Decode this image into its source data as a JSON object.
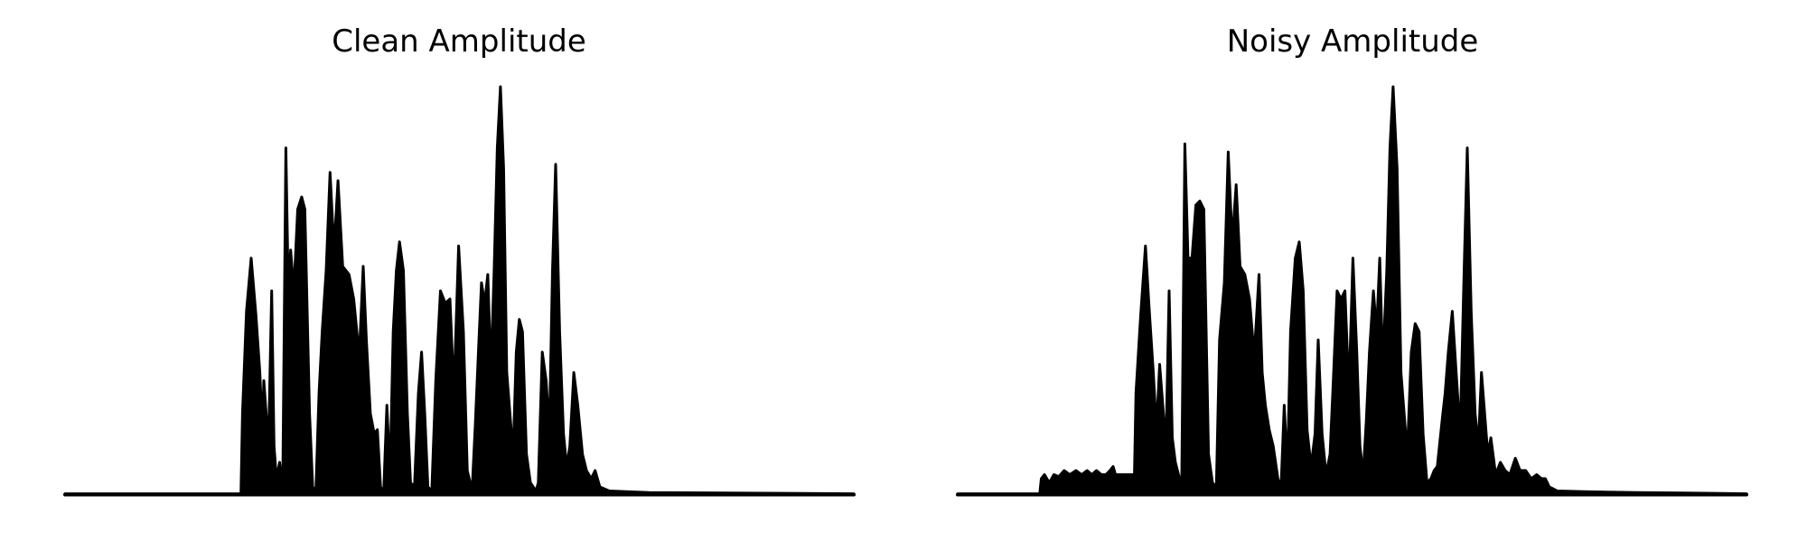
{
  "chart_data": [
    {
      "type": "area",
      "title": "Clean Amplitude",
      "xlabel": "",
      "ylabel": "",
      "axes_visible": false,
      "grid": false,
      "color": "#000000",
      "ylim": [
        0,
        1.0
      ],
      "baseline": 0.003,
      "series": [
        {
          "envelope": [
            [
              0.0,
              0.003
            ],
            [
              0.223,
              0.003
            ],
            [
              0.225,
              0.2
            ],
            [
              0.23,
              0.45
            ],
            [
              0.236,
              0.58
            ],
            [
              0.242,
              0.44
            ],
            [
              0.247,
              0.3
            ],
            [
              0.25,
              0.16
            ],
            [
              0.252,
              0.28
            ],
            [
              0.255,
              0.2
            ],
            [
              0.258,
              0.12
            ],
            [
              0.262,
              0.5
            ],
            [
              0.265,
              0.12
            ],
            [
              0.268,
              0.04
            ],
            [
              0.272,
              0.08
            ],
            [
              0.276,
              0.015
            ],
            [
              0.28,
              0.85
            ],
            [
              0.283,
              0.5
            ],
            [
              0.286,
              0.6
            ],
            [
              0.29,
              0.5
            ],
            [
              0.295,
              0.7
            ],
            [
              0.3,
              0.73
            ],
            [
              0.304,
              0.7
            ],
            [
              0.31,
              0.2
            ],
            [
              0.314,
              0.02
            ],
            [
              0.318,
              0.01
            ],
            [
              0.322,
              0.25
            ],
            [
              0.326,
              0.4
            ],
            [
              0.331,
              0.55
            ],
            [
              0.336,
              0.79
            ],
            [
              0.341,
              0.6
            ],
            [
              0.346,
              0.77
            ],
            [
              0.352,
              0.56
            ],
            [
              0.36,
              0.54
            ],
            [
              0.366,
              0.48
            ],
            [
              0.373,
              0.34
            ],
            [
              0.378,
              0.56
            ],
            [
              0.382,
              0.38
            ],
            [
              0.387,
              0.2
            ],
            [
              0.392,
              0.15
            ],
            [
              0.396,
              0.16
            ],
            [
              0.4,
              0.02
            ],
            [
              0.404,
              0.01
            ],
            [
              0.408,
              0.22
            ],
            [
              0.412,
              0.05
            ],
            [
              0.416,
              0.4
            ],
            [
              0.42,
              0.55
            ],
            [
              0.424,
              0.62
            ],
            [
              0.429,
              0.55
            ],
            [
              0.434,
              0.2
            ],
            [
              0.438,
              0.03
            ],
            [
              0.443,
              0.02
            ],
            [
              0.448,
              0.25
            ],
            [
              0.452,
              0.35
            ],
            [
              0.456,
              0.2
            ],
            [
              0.46,
              0.02
            ],
            [
              0.465,
              0.01
            ],
            [
              0.47,
              0.28
            ],
            [
              0.476,
              0.5
            ],
            [
              0.482,
              0.47
            ],
            [
              0.488,
              0.48
            ],
            [
              0.493,
              0.25
            ],
            [
              0.499,
              0.61
            ],
            [
              0.505,
              0.4
            ],
            [
              0.51,
              0.06
            ],
            [
              0.516,
              0.01
            ],
            [
              0.52,
              0.17
            ],
            [
              0.524,
              0.35
            ],
            [
              0.528,
              0.52
            ],
            [
              0.532,
              0.47
            ],
            [
              0.536,
              0.54
            ],
            [
              0.54,
              0.3
            ],
            [
              0.544,
              0.55
            ],
            [
              0.548,
              0.85
            ],
            [
              0.552,
              1.0
            ],
            [
              0.556,
              0.8
            ],
            [
              0.56,
              0.3
            ],
            [
              0.564,
              0.2
            ],
            [
              0.568,
              0.1
            ],
            [
              0.572,
              0.35
            ],
            [
              0.576,
              0.43
            ],
            [
              0.58,
              0.4
            ],
            [
              0.585,
              0.1
            ],
            [
              0.59,
              0.03
            ],
            [
              0.597,
              0.01
            ],
            [
              0.6,
              0.03
            ],
            [
              0.605,
              0.35
            ],
            [
              0.61,
              0.28
            ],
            [
              0.614,
              0.15
            ],
            [
              0.618,
              0.55
            ],
            [
              0.622,
              0.81
            ],
            [
              0.627,
              0.4
            ],
            [
              0.632,
              0.15
            ],
            [
              0.636,
              0.07
            ],
            [
              0.64,
              0.12
            ],
            [
              0.645,
              0.3
            ],
            [
              0.65,
              0.22
            ],
            [
              0.656,
              0.1
            ],
            [
              0.661,
              0.06
            ],
            [
              0.667,
              0.04
            ],
            [
              0.672,
              0.06
            ],
            [
              0.678,
              0.02
            ],
            [
              0.69,
              0.01
            ],
            [
              0.74,
              0.006
            ],
            [
              1.0,
              0.003
            ]
          ]
        }
      ]
    },
    {
      "type": "area",
      "title": "Noisy Amplitude",
      "xlabel": "",
      "ylabel": "",
      "axes_visible": false,
      "grid": false,
      "color": "#000000",
      "ylim": [
        0,
        1.0
      ],
      "baseline": 0.003,
      "series": [
        {
          "envelope": [
            [
              0.0,
              0.003
            ],
            [
              0.1,
              0.003
            ],
            [
              0.104,
              0.003
            ],
            [
              0.106,
              0.04
            ],
            [
              0.11,
              0.05
            ],
            [
              0.116,
              0.03
            ],
            [
              0.122,
              0.05
            ],
            [
              0.128,
              0.045
            ],
            [
              0.135,
              0.06
            ],
            [
              0.142,
              0.05
            ],
            [
              0.15,
              0.06
            ],
            [
              0.157,
              0.05
            ],
            [
              0.164,
              0.06
            ],
            [
              0.17,
              0.05
            ],
            [
              0.176,
              0.06
            ],
            [
              0.182,
              0.05
            ],
            [
              0.188,
              0.05
            ],
            [
              0.193,
              0.06
            ],
            [
              0.197,
              0.07
            ],
            [
              0.2,
              0.05
            ],
            [
              0.224,
              0.05
            ],
            [
              0.226,
              0.25
            ],
            [
              0.232,
              0.44
            ],
            [
              0.238,
              0.61
            ],
            [
              0.243,
              0.45
            ],
            [
              0.248,
              0.3
            ],
            [
              0.252,
              0.16
            ],
            [
              0.256,
              0.32
            ],
            [
              0.26,
              0.22
            ],
            [
              0.264,
              0.12
            ],
            [
              0.268,
              0.5
            ],
            [
              0.272,
              0.14
            ],
            [
              0.276,
              0.08
            ],
            [
              0.28,
              0.05
            ],
            [
              0.284,
              0.02
            ],
            [
              0.288,
              0.86
            ],
            [
              0.292,
              0.58
            ],
            [
              0.297,
              0.58
            ],
            [
              0.302,
              0.71
            ],
            [
              0.307,
              0.72
            ],
            [
              0.312,
              0.7
            ],
            [
              0.318,
              0.1
            ],
            [
              0.323,
              0.03
            ],
            [
              0.328,
              0.02
            ],
            [
              0.332,
              0.38
            ],
            [
              0.338,
              0.52
            ],
            [
              0.343,
              0.84
            ],
            [
              0.348,
              0.62
            ],
            [
              0.353,
              0.76
            ],
            [
              0.358,
              0.56
            ],
            [
              0.364,
              0.54
            ],
            [
              0.37,
              0.48
            ],
            [
              0.376,
              0.34
            ],
            [
              0.382,
              0.54
            ],
            [
              0.386,
              0.3
            ],
            [
              0.39,
              0.22
            ],
            [
              0.395,
              0.16
            ],
            [
              0.4,
              0.12
            ],
            [
              0.406,
              0.04
            ],
            [
              0.41,
              0.02
            ],
            [
              0.414,
              0.22
            ],
            [
              0.418,
              0.06
            ],
            [
              0.422,
              0.4
            ],
            [
              0.428,
              0.58
            ],
            [
              0.433,
              0.62
            ],
            [
              0.438,
              0.5
            ],
            [
              0.443,
              0.16
            ],
            [
              0.448,
              0.07
            ],
            [
              0.453,
              0.15
            ],
            [
              0.457,
              0.38
            ],
            [
              0.462,
              0.15
            ],
            [
              0.467,
              0.05
            ],
            [
              0.472,
              0.1
            ],
            [
              0.476,
              0.27
            ],
            [
              0.481,
              0.5
            ],
            [
              0.486,
              0.48
            ],
            [
              0.491,
              0.5
            ],
            [
              0.496,
              0.25
            ],
            [
              0.501,
              0.58
            ],
            [
              0.506,
              0.35
            ],
            [
              0.51,
              0.12
            ],
            [
              0.514,
              0.05
            ],
            [
              0.518,
              0.18
            ],
            [
              0.522,
              0.35
            ],
            [
              0.527,
              0.5
            ],
            [
              0.531,
              0.4
            ],
            [
              0.535,
              0.58
            ],
            [
              0.539,
              0.32
            ],
            [
              0.544,
              0.55
            ],
            [
              0.548,
              0.85
            ],
            [
              0.552,
              1.0
            ],
            [
              0.557,
              0.8
            ],
            [
              0.562,
              0.3
            ],
            [
              0.566,
              0.2
            ],
            [
              0.57,
              0.1
            ],
            [
              0.575,
              0.35
            ],
            [
              0.58,
              0.42
            ],
            [
              0.585,
              0.4
            ],
            [
              0.59,
              0.15
            ],
            [
              0.595,
              0.03
            ],
            [
              0.6,
              0.04
            ],
            [
              0.604,
              0.06
            ],
            [
              0.608,
              0.07
            ],
            [
              0.614,
              0.18
            ],
            [
              0.618,
              0.25
            ],
            [
              0.622,
              0.35
            ],
            [
              0.627,
              0.45
            ],
            [
              0.632,
              0.3
            ],
            [
              0.637,
              0.15
            ],
            [
              0.642,
              0.55
            ],
            [
              0.646,
              0.85
            ],
            [
              0.651,
              0.45
            ],
            [
              0.656,
              0.2
            ],
            [
              0.66,
              0.12
            ],
            [
              0.664,
              0.3
            ],
            [
              0.668,
              0.2
            ],
            [
              0.672,
              0.1
            ],
            [
              0.676,
              0.14
            ],
            [
              0.682,
              0.05
            ],
            [
              0.688,
              0.08
            ],
            [
              0.694,
              0.06
            ],
            [
              0.7,
              0.05
            ],
            [
              0.707,
              0.09
            ],
            [
              0.713,
              0.06
            ],
            [
              0.72,
              0.06
            ],
            [
              0.727,
              0.04
            ],
            [
              0.734,
              0.05
            ],
            [
              0.74,
              0.04
            ],
            [
              0.745,
              0.04
            ],
            [
              0.75,
              0.02
            ],
            [
              0.76,
              0.01
            ],
            [
              0.8,
              0.008
            ],
            [
              0.86,
              0.006
            ],
            [
              0.92,
              0.005
            ],
            [
              1.0,
              0.003
            ]
          ]
        }
      ]
    }
  ]
}
